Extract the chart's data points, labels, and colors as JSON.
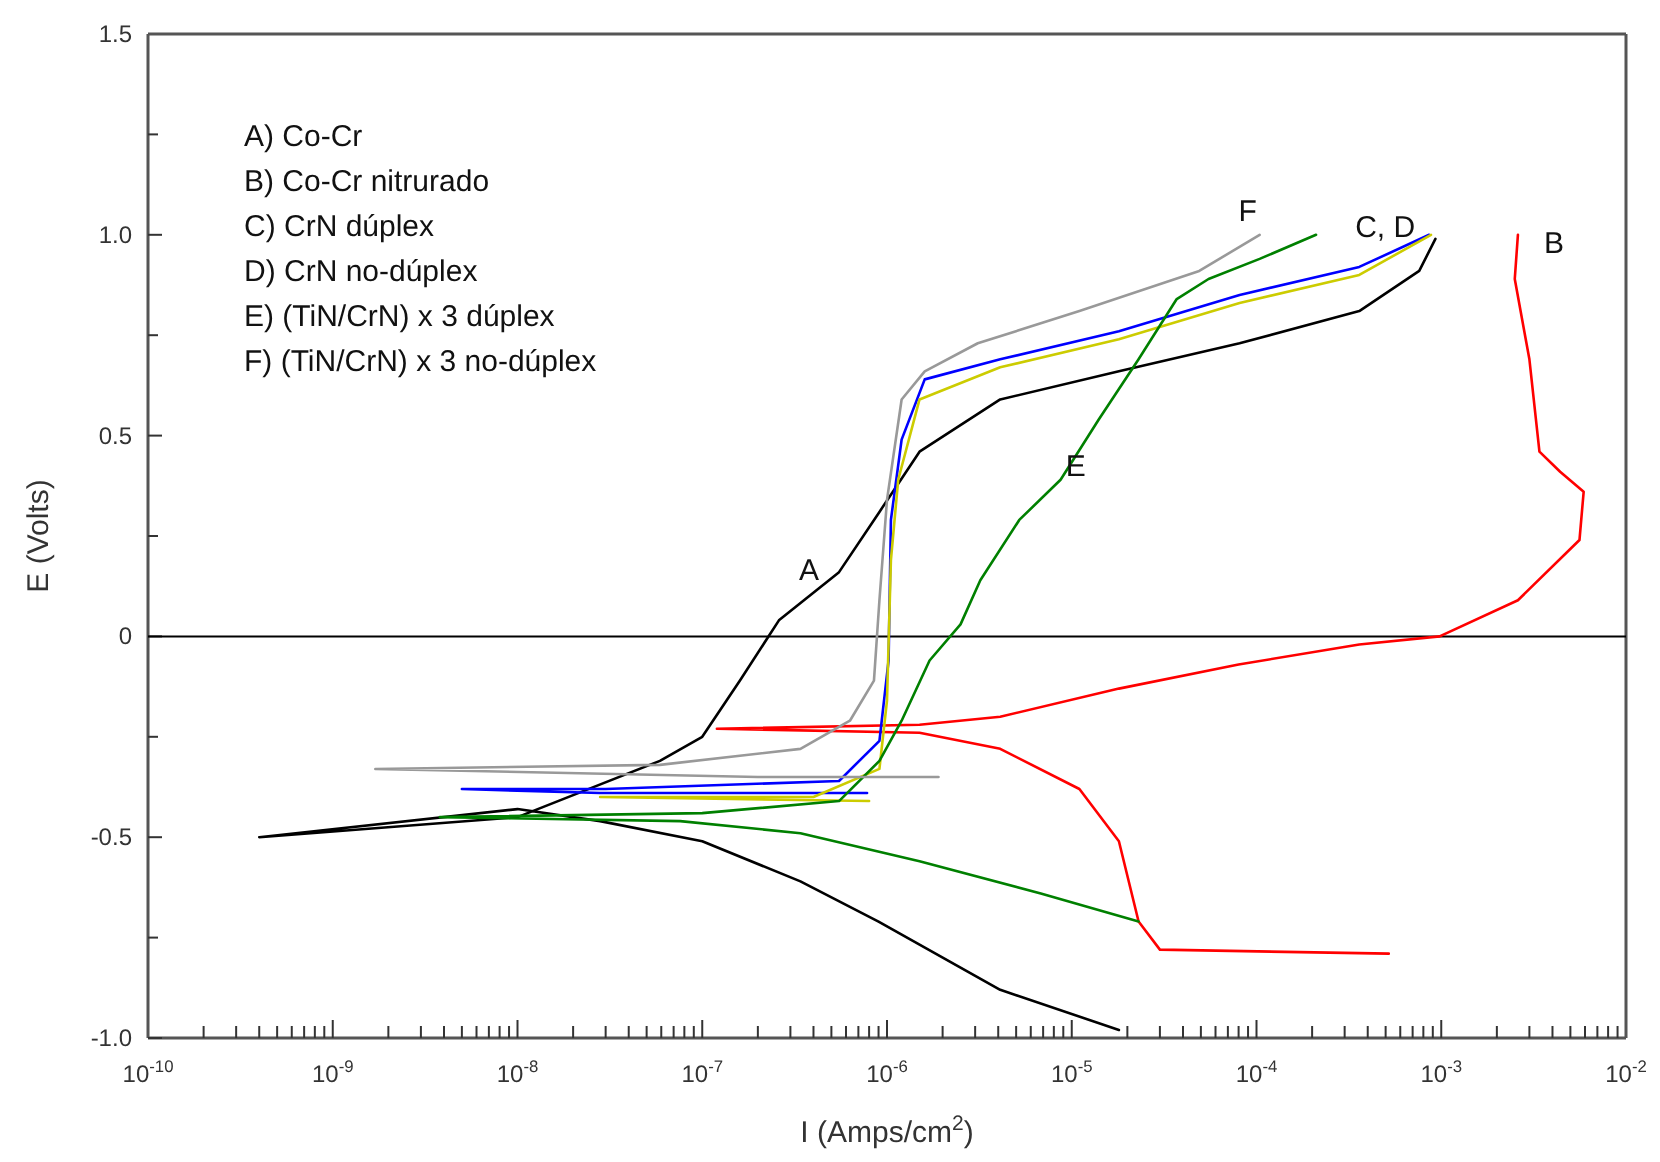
{
  "chart_data": {
    "type": "line",
    "xlabel": "I (Amps/cm$^{2}$)",
    "ylabel": "E (Volts)",
    "log": "x",
    "grid": false,
    "marker": "none",
    "line_style": "solid",
    "xlim": [
      1e-10,
      0.01
    ],
    "ylim": [
      -1,
      1.5
    ],
    "xticks": [
      {
        "value": 1e-10,
        "label": "10$^{-10}$"
      },
      {
        "value": 2e-10,
        "label": null
      },
      {
        "value": 3e-10,
        "label": null
      },
      {
        "value": 4e-10,
        "label": null
      },
      {
        "value": 5e-10,
        "label": null
      },
      {
        "value": 6e-10,
        "label": null
      },
      {
        "value": 7e-10,
        "label": null
      },
      {
        "value": 8e-10,
        "label": null
      },
      {
        "value": 9e-10,
        "label": null
      },
      {
        "value": 1e-09,
        "label": "10$^{-9}$"
      },
      {
        "value": 2e-09,
        "label": null
      },
      {
        "value": 3e-09,
        "label": null
      },
      {
        "value": 4e-09,
        "label": null
      },
      {
        "value": 5e-09,
        "label": null
      },
      {
        "value": 6e-09,
        "label": null
      },
      {
        "value": 7e-09,
        "label": null
      },
      {
        "value": 8e-09,
        "label": null
      },
      {
        "value": 9e-09,
        "label": null
      },
      {
        "value": 1e-08,
        "label": "10$^{-8}$"
      },
      {
        "value": 2e-08,
        "label": null
      },
      {
        "value": 3e-08,
        "label": null
      },
      {
        "value": 4e-08,
        "label": null
      },
      {
        "value": 5e-08,
        "label": null
      },
      {
        "value": 6e-08,
        "label": null
      },
      {
        "value": 7e-08,
        "label": null
      },
      {
        "value": 8e-08,
        "label": null
      },
      {
        "value": 9e-08,
        "label": null
      },
      {
        "value": 1e-07,
        "label": "10$^{-7}$"
      },
      {
        "value": 2e-07,
        "label": null
      },
      {
        "value": 3e-07,
        "label": null
      },
      {
        "value": 4e-07,
        "label": null
      },
      {
        "value": 5e-07,
        "label": null
      },
      {
        "value": 6e-07,
        "label": null
      },
      {
        "value": 7e-07,
        "label": null
      },
      {
        "value": 8e-07,
        "label": null
      },
      {
        "value": 9e-07,
        "label": null
      },
      {
        "value": 1e-06,
        "label": "10$^{-6}$"
      },
      {
        "value": 2e-06,
        "label": null
      },
      {
        "value": 3e-06,
        "label": null
      },
      {
        "value": 4e-06,
        "label": null
      },
      {
        "value": 5e-06,
        "label": null
      },
      {
        "value": 6e-06,
        "label": null
      },
      {
        "value": 7e-06,
        "label": null
      },
      {
        "value": 8e-06,
        "label": null
      },
      {
        "value": 9e-06,
        "label": null
      },
      {
        "value": 1e-05,
        "label": "10$^{-5}$"
      },
      {
        "value": 2e-05,
        "label": null
      },
      {
        "value": 3e-05,
        "label": null
      },
      {
        "value": 4e-05,
        "label": null
      },
      {
        "value": 5e-05,
        "label": null
      },
      {
        "value": 6e-05,
        "label": null
      },
      {
        "value": 7e-05,
        "label": null
      },
      {
        "value": 8e-05,
        "label": null
      },
      {
        "value": 9e-05,
        "label": null
      },
      {
        "value": 0.0001,
        "label": "10$^{-4}$"
      },
      {
        "value": 0.0002,
        "label": null
      },
      {
        "value": 0.0003,
        "label": null
      },
      {
        "value": 0.0004,
        "label": null
      },
      {
        "value": 0.0005,
        "label": null
      },
      {
        "value": 0.0006,
        "label": null
      },
      {
        "value": 0.0007,
        "label": null
      },
      {
        "value": 0.0008,
        "label": null
      },
      {
        "value": 0.0009,
        "label": null
      },
      {
        "value": 0.001,
        "label": "10$^{-3}$"
      },
      {
        "value": 0.002,
        "label": null
      },
      {
        "value": 0.003,
        "label": null
      },
      {
        "value": 0.004,
        "label": null
      },
      {
        "value": 0.005,
        "label": null
      },
      {
        "value": 0.006,
        "label": null
      },
      {
        "value": 0.007,
        "label": null
      },
      {
        "value": 0.008,
        "label": null
      },
      {
        "value": 0.009,
        "label": null
      },
      {
        "value": 0.01,
        "label": "10$^{-2}$"
      }
    ],
    "yticks": [
      {
        "value": -1,
        "label": "-1.0"
      },
      {
        "value": -0.75,
        "label": null
      },
      {
        "value": -0.5,
        "label": "-0.5"
      },
      {
        "value": -0.25,
        "label": null
      },
      0,
      {
        "value": 0.25,
        "label": null
      },
      {
        "value": 0.5,
        "label": "0.5"
      },
      {
        "value": 0.75,
        "label": null
      },
      {
        "value": 1,
        "label": "1.0"
      },
      {
        "value": 1.25,
        "label": null
      },
      {
        "value": 1.5,
        "label": "1.5"
      }
    ],
    "ref_lines": [
      {
        "axis": "y",
        "value": 0,
        "color": "#000000"
      }
    ],
    "series": [
      {
        "color": "#000000",
        "x": [
          1.8e-05,
          4.1e-06,
          9e-07,
          3.4e-07,
          1e-07,
          2.8e-08,
          1e-08,
          4e-10,
          1e-08,
          5.9e-08,
          1e-07,
          1.6e-07,
          2.6e-07,
          5.5e-07,
          9.1e-07,
          1.5e-06,
          4.1e-06,
          1.8e-05,
          8.1e-05,
          0.00036,
          0.00076,
          0.00093
        ],
        "values": [
          -0.98,
          -0.88,
          -0.71,
          -0.61,
          -0.51,
          -0.46,
          -0.43,
          -0.5,
          -0.45,
          -0.31,
          -0.25,
          -0.11,
          0.04,
          0.16,
          0.31,
          0.46,
          0.59,
          0.66,
          0.73,
          0.81,
          0.91,
          0.99
        ]
      },
      {
        "color": "#ff0000",
        "x": [
          0.00052,
          3e-05,
          2.3e-05,
          1.8e-05,
          1.1e-05,
          4.1e-06,
          1.5e-06,
          1.2e-07,
          1.5e-06,
          4.1e-06,
          1.8e-05,
          8e-05,
          0.00036,
          0.00098,
          0.0026,
          0.0056,
          0.0059,
          0.0044,
          0.0034,
          0.003,
          0.0025,
          0.0026
        ],
        "values": [
          -0.79,
          -0.78,
          -0.71,
          -0.51,
          -0.38,
          -0.28,
          -0.24,
          -0.23,
          -0.22,
          -0.2,
          -0.13,
          -0.07,
          -0.02,
          0,
          0.09,
          0.24,
          0.36,
          0.41,
          0.46,
          0.69,
          0.89,
          1
        ]
      },
      {
        "color": "#0000ff",
        "x": [
          7.8e-07,
          2.8e-08,
          5e-09,
          3e-08,
          5.5e-07,
          9.1e-07,
          1.02e-06,
          1.05e-06,
          1.2e-06,
          1.6e-06,
          4.1e-06,
          1.8e-05,
          8.1e-05,
          0.00036,
          0.00086
        ],
        "values": [
          -0.39,
          -0.39,
          -0.38,
          -0.38,
          -0.36,
          -0.26,
          -0.06,
          0.29,
          0.49,
          0.64,
          0.69,
          0.76,
          0.85,
          0.92,
          1
        ]
      },
      {
        "color": "#cccc00",
        "x": [
          8e-07,
          2.8e-08,
          4e-07,
          9.1e-07,
          1e-06,
          1.05e-06,
          1.15e-06,
          1.5e-06,
          4.1e-06,
          1.8e-05,
          8.1e-05,
          0.00036,
          0.00088
        ],
        "values": [
          -0.41,
          -0.4,
          -0.4,
          -0.33,
          -0.16,
          0.19,
          0.39,
          0.59,
          0.67,
          0.74,
          0.83,
          0.9,
          1
        ]
      },
      {
        "color": "#008000",
        "x": [
          2.3e-05,
          6.8e-06,
          1.5e-06,
          3.4e-07,
          7.6e-08,
          3.8e-09,
          1e-07,
          5.5e-07,
          9.1e-07,
          1.2e-06,
          1.7e-06,
          2.5e-06,
          3.2e-06,
          5.2e-06,
          8.7e-06,
          1.4e-05,
          2.3e-05,
          3.7e-05,
          5.5e-05,
          0.000104,
          0.00021
        ],
        "values": [
          -0.71,
          -0.64,
          -0.56,
          -0.49,
          -0.46,
          -0.45,
          -0.44,
          -0.41,
          -0.31,
          -0.21,
          -0.06,
          0.03,
          0.14,
          0.29,
          0.39,
          0.54,
          0.69,
          0.84,
          0.89,
          0.94,
          1
        ]
      },
      {
        "color": "#999999",
        "x": [
          1.9e-06,
          2e-07,
          1.7e-09,
          5.9e-08,
          3.4e-07,
          6.3e-07,
          8.5e-07,
          9.1e-07,
          1e-06,
          1.2e-06,
          1.6e-06,
          3.1e-06,
          1.1e-05,
          4.9e-05,
          0.000104
        ],
        "values": [
          -0.35,
          -0.35,
          -0.33,
          -0.32,
          -0.28,
          -0.21,
          -0.11,
          0.09,
          0.34,
          0.59,
          0.66,
          0.73,
          0.81,
          0.91,
          1
        ]
      }
    ],
    "annotations": [
      "A) Co-Cr",
      "B) Co-Cr nitrurado",
      "C) CrN dúplex",
      "D) CrN no-dúplex",
      "E) (TiN/CrN) x 3 dúplex",
      "F) (TiN/CrN) x 3 no-dúplex",
      {
        "text": "A",
        "x": 5.5e-07,
        "y": 0.16
      },
      {
        "text": "B",
        "x": 0.0026,
        "y": 1
      },
      {
        "text": "C, D",
        "x": 0.00086,
        "y": 1
      },
      {
        "text": "E",
        "x": 1.05e-05,
        "y": 0.42
      },
      {
        "text": "F",
        "x": 0.000104,
        "y": 1
      }
    ]
  }
}
